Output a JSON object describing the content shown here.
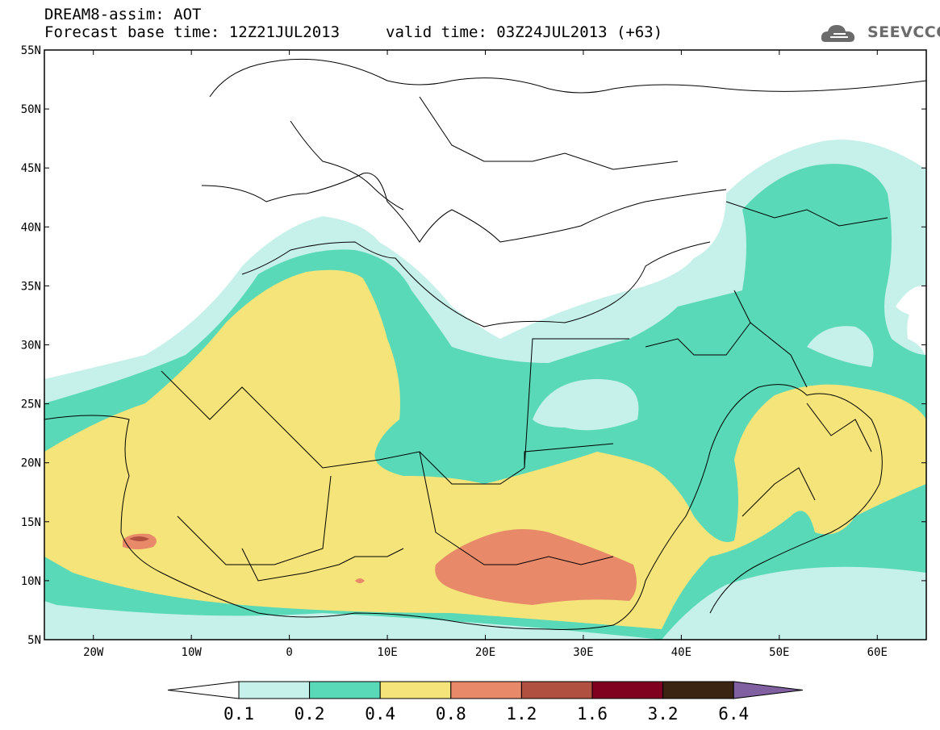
{
  "header": {
    "model_line": "DREAM8-assim: AOT",
    "base_time": "Forecast base time: 12Z21JUL2013",
    "valid_time": "valid time: 03Z24JUL2013 (+63)",
    "logo_text": "SEEVCCC"
  },
  "map": {
    "lon_range": [
      -25,
      65
    ],
    "lat_range": [
      5,
      55
    ],
    "lon_labels": [
      "20W",
      "10W",
      "0",
      "10E",
      "20E",
      "30E",
      "40E",
      "50E",
      "60E"
    ],
    "lat_labels": [
      "5N",
      "10N",
      "15N",
      "20N",
      "25N",
      "30N",
      "35N",
      "40N",
      "45N",
      "50N",
      "55N"
    ]
  },
  "colorbar": {
    "labels": [
      "0.1",
      "0.2",
      "0.4",
      "0.8",
      "1.2",
      "1.6",
      "3.2",
      "6.4"
    ],
    "colors": [
      "#c6f0ea",
      "#5ad9b8",
      "#f5e47a",
      "#e8896a",
      "#b05040",
      "#800020",
      "#3b2412",
      "#8060a0"
    ]
  }
}
